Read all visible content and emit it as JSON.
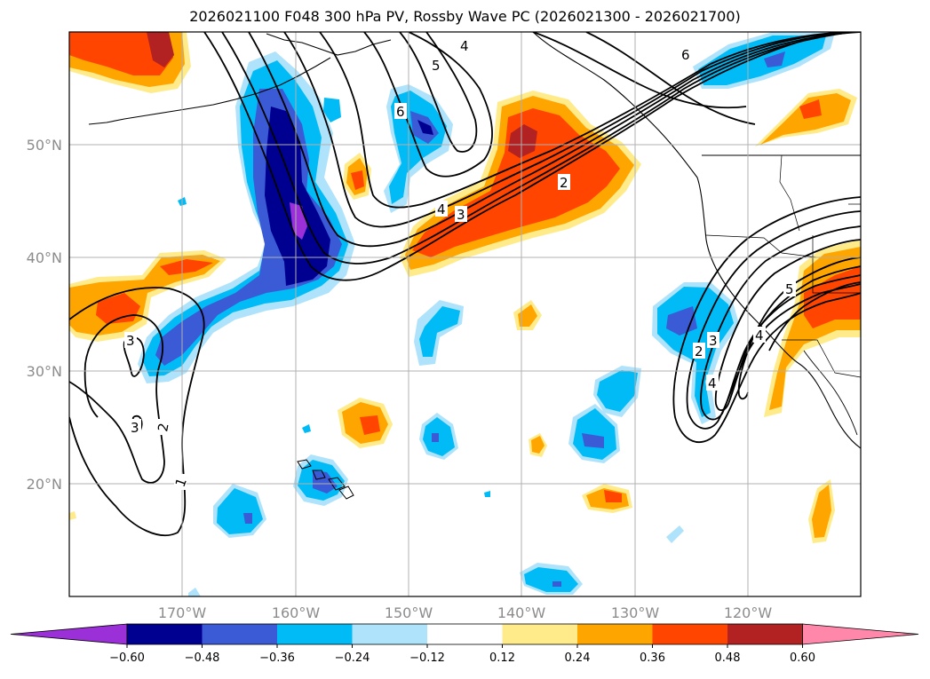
{
  "title": "2026021100 F048 300 hPa PV, Rossby Wave PC (2026021300 - 2026021700)",
  "lat_labels": [
    "50°N",
    "40°N",
    "30°N",
    "20°N"
  ],
  "lon_labels": [
    "170°W",
    "160°W",
    "150°W",
    "140°W",
    "130°W",
    "120°W"
  ],
  "colorbar": {
    "colors": [
      "#9b30d9",
      "#000090",
      "#3a5bd5",
      "#00bbf5",
      "#aee3fb",
      "#ffffff",
      "#ffeb8a",
      "#ffa500",
      "#ff4500",
      "#b22222",
      "#ff87aa"
    ],
    "labels": [
      "−0.60",
      "−0.48",
      "−0.36",
      "−0.24",
      "−0.12",
      "0.12",
      "0.24",
      "0.36",
      "0.48",
      "0.60"
    ]
  },
  "contour_labels": [
    "1",
    "2",
    "3",
    "3",
    "3",
    "4",
    "5",
    "6",
    "6",
    "4",
    "3",
    "2",
    "2",
    "3",
    "4",
    "5",
    "4"
  ],
  "icons": {
    "map": "geographic-map",
    "colorbar": "colorbar-gradient"
  }
}
